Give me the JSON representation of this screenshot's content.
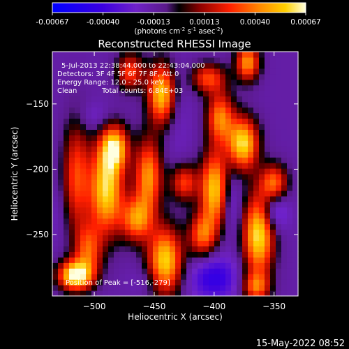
{
  "colorbar": {
    "ticks": [
      "-0.00067",
      "-0.00040",
      "-0.00013",
      "0.00013",
      "0.00040",
      "0.00067"
    ],
    "unit_main": "(photons cm",
    "unit_exp1": "-2",
    "unit_mid": " s",
    "unit_exp2": "-1",
    "unit_end": " asec",
    "unit_exp3": "-2",
    "unit_close": ")"
  },
  "annotations": {
    "time": "5-Jul-2013 22:38:44.000 to 22:43:04.000",
    "detectors": "Detectors: 3F 4F 5F 6F 7F 8F, Att 0",
    "energy": "Energy Range: 12.0 - 25.0 keV",
    "clean": "Clean",
    "counts": "Total counts: 6.84E+03",
    "peak": "Position of Peak = [-516,-279]"
  },
  "footer_timestamp": "15-May-2022 08:52",
  "chart_data": {
    "type": "heatmap",
    "title": "Reconstructed RHESSI Image",
    "xlabel": "Heliocentric X (arcsec)",
    "ylabel": "Heliocentric Y (arcsec)",
    "xlim": [
      -535,
      -330
    ],
    "ylim": [
      -297,
      -110
    ],
    "x_ticks": [
      -500,
      -450,
      -400,
      -350
    ],
    "y_ticks": [
      -250,
      -200,
      -150
    ],
    "x_tick_labels": [
      "−500",
      "−450",
      "−400",
      "−350"
    ],
    "y_tick_labels": [
      "−250",
      "−200",
      "−150"
    ],
    "colorbar_range": [
      -0.00067,
      0.00067
    ],
    "peak_position": [
      -516,
      -279
    ],
    "blobs": [
      {
        "x": -490,
        "y": -215,
        "sx": 10,
        "sy": 24,
        "v": 0.0006
      },
      {
        "x": -483,
        "y": -183,
        "sx": 8,
        "sy": 12,
        "v": 0.0005
      },
      {
        "x": -516,
        "y": -281,
        "sx": 10,
        "sy": 8,
        "v": 0.00067
      },
      {
        "x": -505,
        "y": -262,
        "sx": 8,
        "sy": 14,
        "v": 0.0003
      },
      {
        "x": -515,
        "y": -205,
        "sx": 8,
        "sy": 30,
        "v": 0.0003
      },
      {
        "x": -444,
        "y": -142,
        "sx": 8,
        "sy": 16,
        "v": 0.00055
      },
      {
        "x": -441,
        "y": -270,
        "sx": 10,
        "sy": 18,
        "v": 0.00058
      },
      {
        "x": -465,
        "y": -238,
        "sx": 9,
        "sy": 12,
        "v": 0.0004
      },
      {
        "x": -455,
        "y": -205,
        "sx": 8,
        "sy": 20,
        "v": 0.00045
      },
      {
        "x": -425,
        "y": -210,
        "sx": 8,
        "sy": 10,
        "v": 0.0003
      },
      {
        "x": -400,
        "y": -215,
        "sx": 8,
        "sy": 20,
        "v": 0.00055
      },
      {
        "x": -395,
        "y": -160,
        "sx": 8,
        "sy": 14,
        "v": 0.0004
      },
      {
        "x": -410,
        "y": -250,
        "sx": 8,
        "sy": 12,
        "v": 0.00035
      },
      {
        "x": -376,
        "y": -180,
        "sx": 9,
        "sy": 14,
        "v": 0.0006
      },
      {
        "x": -372,
        "y": -118,
        "sx": 7,
        "sy": 10,
        "v": 0.00045
      },
      {
        "x": -363,
        "y": -250,
        "sx": 9,
        "sy": 22,
        "v": 0.00062
      },
      {
        "x": -350,
        "y": -210,
        "sx": 8,
        "sy": 10,
        "v": 0.00035
      },
      {
        "x": -365,
        "y": -290,
        "sx": 8,
        "sy": 8,
        "v": 0.0003
      },
      {
        "x": -470,
        "y": -125,
        "sx": 8,
        "sy": 10,
        "v": 0.0003
      },
      {
        "x": -405,
        "y": -130,
        "sx": 10,
        "sy": 8,
        "v": 0.0003
      },
      {
        "x": -500,
        "y": -160,
        "sx": 10,
        "sy": 8,
        "v": -0.00025
      },
      {
        "x": -400,
        "y": -283,
        "sx": 14,
        "sy": 12,
        "v": -0.00045
      },
      {
        "x": -350,
        "y": -232,
        "sx": 8,
        "sy": 10,
        "v": -0.0004
      },
      {
        "x": -430,
        "y": -160,
        "sx": 8,
        "sy": 30,
        "v": -0.0002
      },
      {
        "x": -455,
        "y": -285,
        "sx": 10,
        "sy": 8,
        "v": -0.00022
      },
      {
        "x": -530,
        "y": -235,
        "sx": 6,
        "sy": 15,
        "v": -0.0002
      },
      {
        "x": -385,
        "y": -225,
        "sx": 6,
        "sy": 18,
        "v": -0.00028
      }
    ]
  }
}
